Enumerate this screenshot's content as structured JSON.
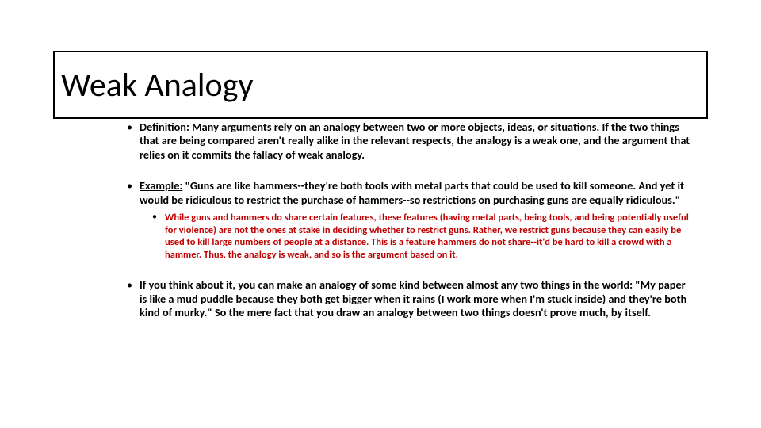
{
  "title": "Weak Analogy",
  "colors": {
    "background": "#ffffff",
    "text": "#000000",
    "accent_red": "#c00000",
    "border": "#000000"
  },
  "typography": {
    "title_font": "Calibri Light",
    "body_font": "Calibri",
    "title_size_pt": 32,
    "body_size_pt": 11,
    "subbullet_size_pt": 9.5,
    "body_weight": "bold"
  },
  "bullets": {
    "definition": {
      "lead": "Definition:",
      "rest": " Many arguments rely on an analogy between two or more objects, ideas, or situations. If the two things that are being compared aren't really alike in the relevant respects, the analogy is a weak one, and the argument that relies on it commits the fallacy of weak analogy."
    },
    "example": {
      "lead": "Example:",
      "rest": " \"Guns are like hammers--they're both tools with metal parts that could be used to kill someone. And yet it would be ridiculous to restrict the purchase of hammers--so restrictions on purchasing guns are equally ridiculous.\"",
      "sub": "While guns and hammers do share certain features, these features (having metal parts, being tools, and being potentially useful for violence) are not the ones at stake in deciding whether to restrict guns. Rather, we restrict guns because they can easily be used to kill large numbers of people at a distance. This is a feature hammers do not share--it'd be hard to kill a crowd with a hammer. Thus, the analogy is weak, and so is the argument based on it."
    },
    "closing": "If you think about it, you can make an analogy of some kind between almost any two things in the world: \"My paper is like a mud puddle because they both get bigger when it rains (I work more when I'm stuck inside) and they're both kind of murky.\" So the mere fact that you draw an analogy between two things doesn't prove much, by itself."
  }
}
